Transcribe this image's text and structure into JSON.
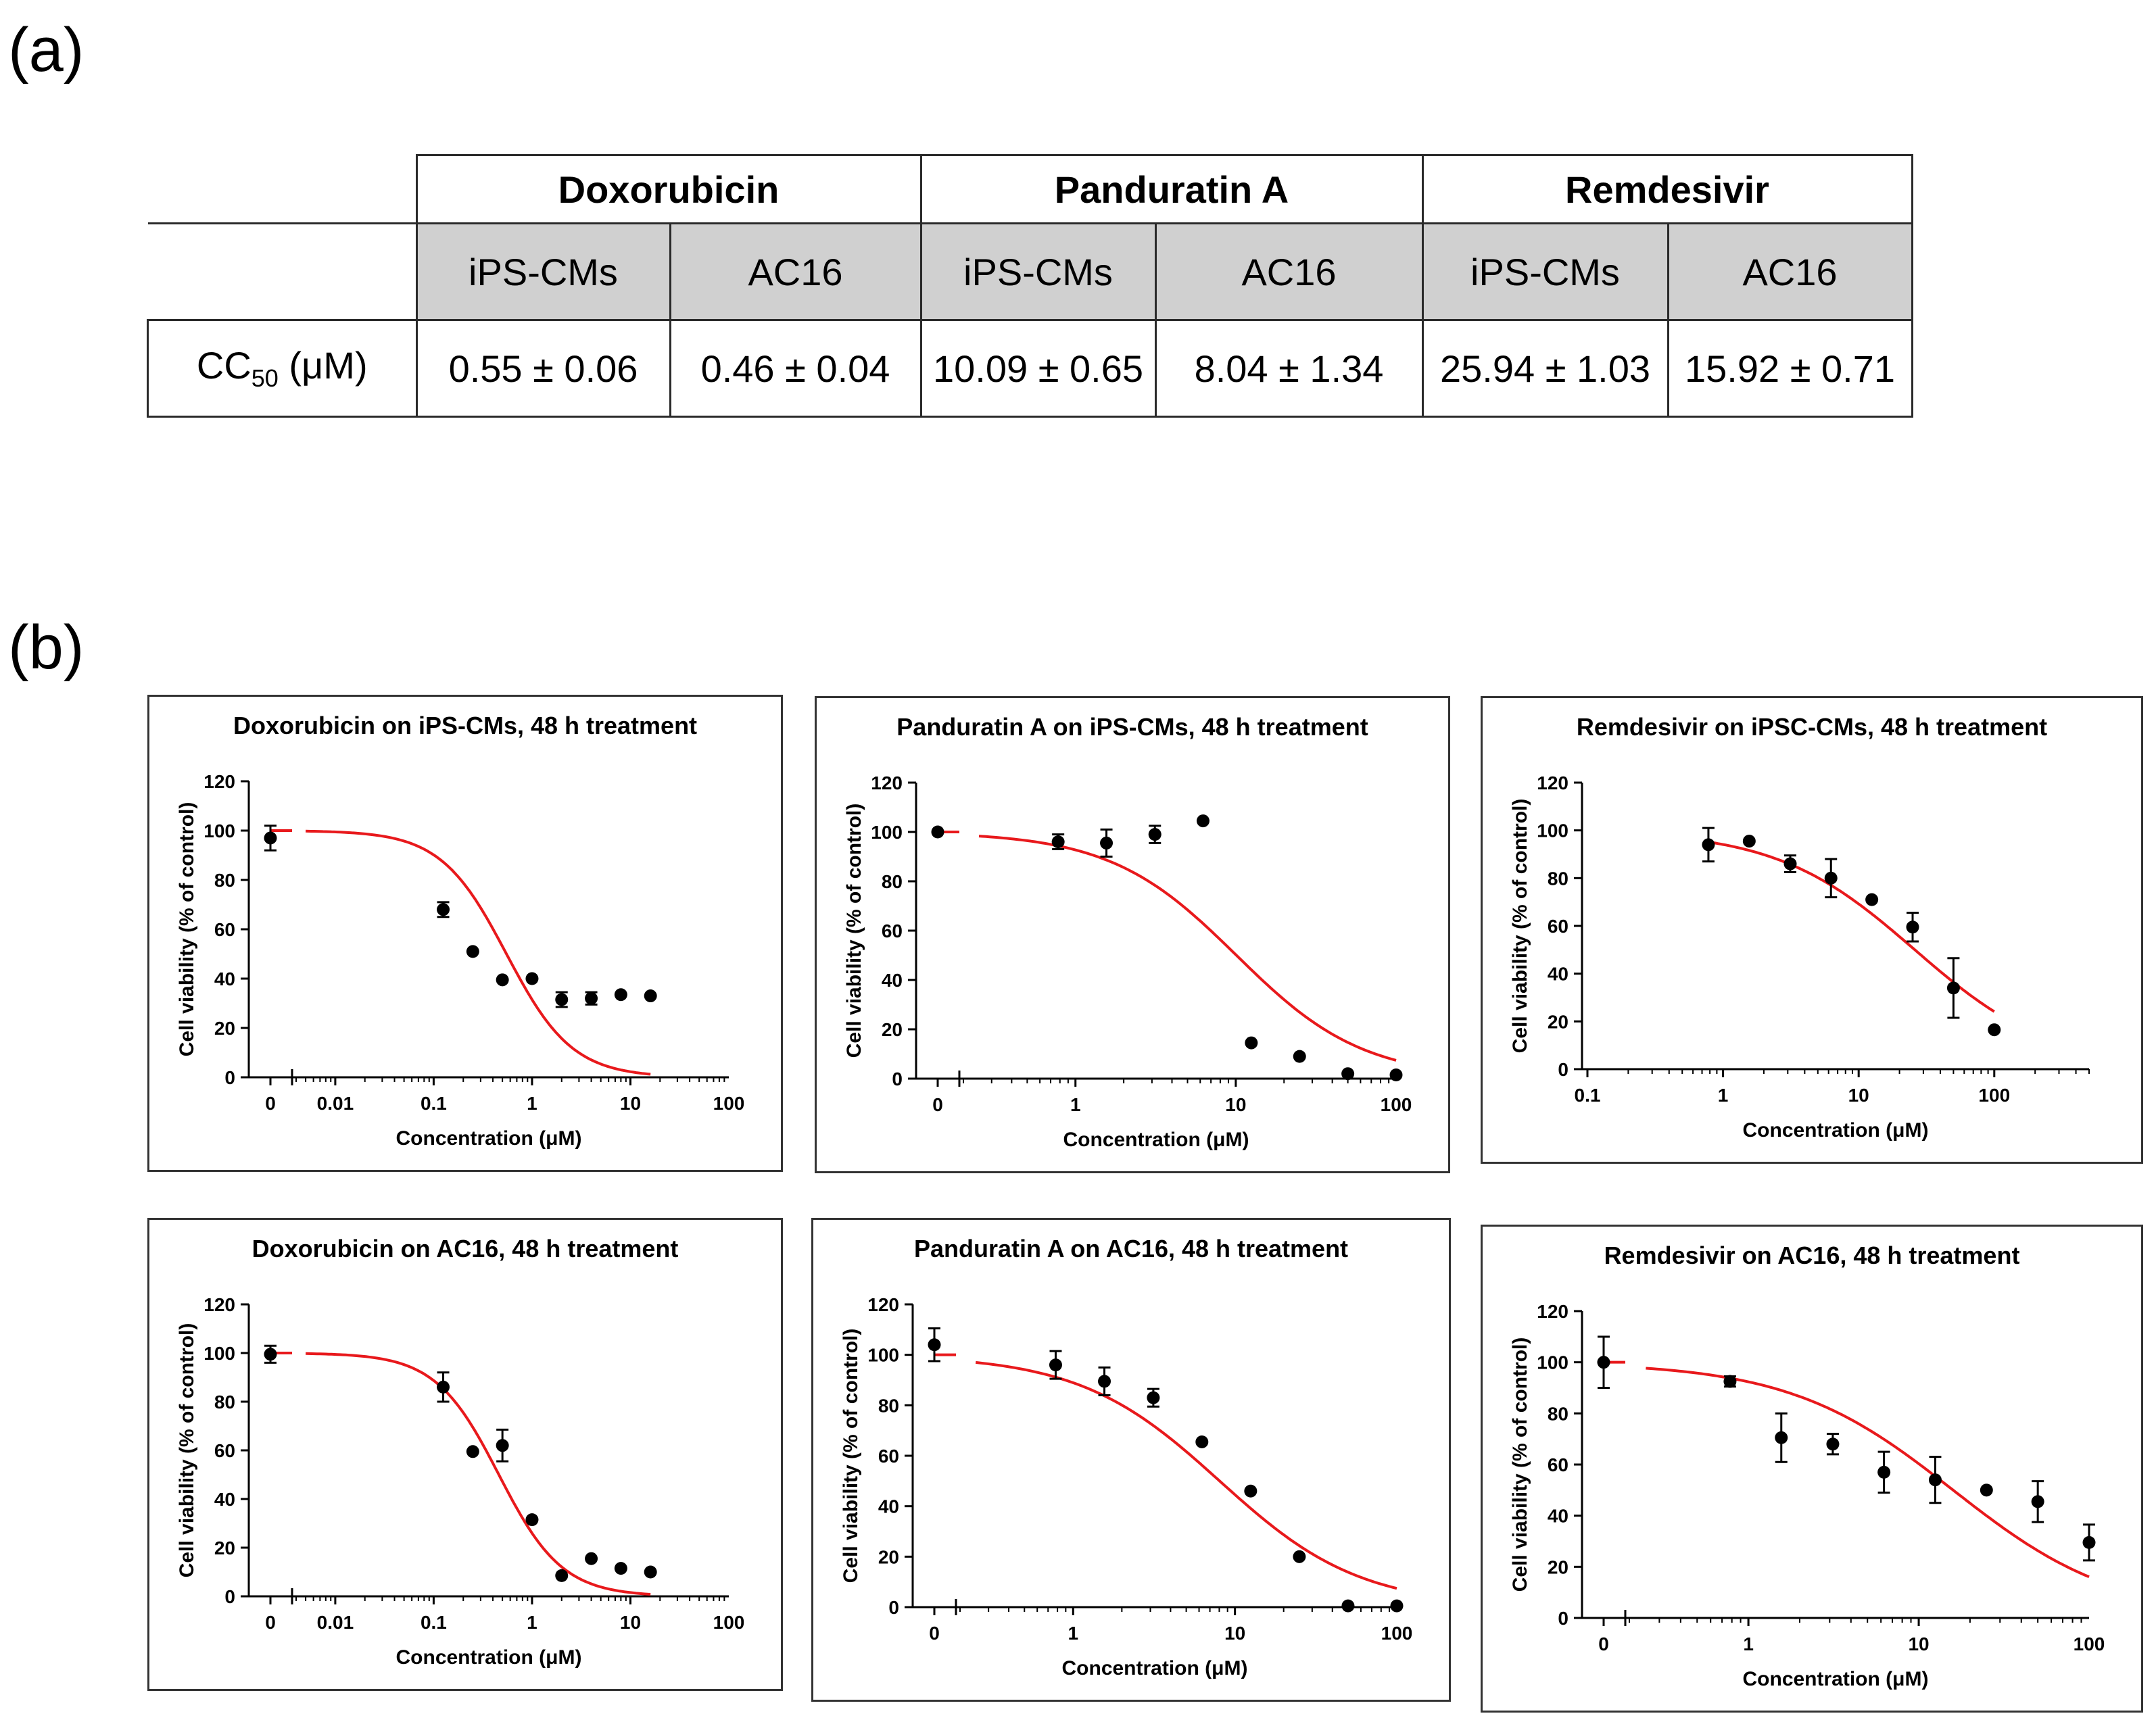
{
  "panel_labels": {
    "a": "(a)",
    "b": "(b)"
  },
  "table": {
    "drugs": [
      "Doxorubicin",
      "Panduratin A",
      "Remdesivir"
    ],
    "cell_lines": [
      "iPS-CMs",
      "AC16",
      "iPS-CMs",
      "AC16",
      "iPS-CMs",
      "AC16"
    ],
    "row_label_main": "CC",
    "row_label_sub": "50",
    "row_label_unit": " (μM)",
    "values": [
      "0.55 ± 0.06",
      "0.46 ± 0.04",
      "10.09 ± 0.65",
      "8.04 ± 1.34",
      "25.94 ± 1.03",
      "15.92 ± 0.71"
    ]
  },
  "colors": {
    "fit": "#e8191c",
    "points": "#000000",
    "header_fill": "#d0d0d0"
  },
  "chart_data": [
    {
      "type": "scatter",
      "title": "Doxorubicin on iPS-CMs, 48 h treatment",
      "xlabel": "Concentration (μM)",
      "ylabel": "Cell viability (% of control)",
      "xscale": "log",
      "xlim": [
        0.004,
        100
      ],
      "ylim": [
        0,
        120
      ],
      "xticks": [
        "0.01",
        "0.1",
        "1",
        "10",
        "100"
      ],
      "yticks": [
        0,
        20,
        40,
        60,
        80,
        100,
        120
      ],
      "zero_point": {
        "x": "0",
        "y": 97,
        "err": 5
      },
      "points": [
        {
          "x": 0.125,
          "y": 68,
          "err": 3
        },
        {
          "x": 0.25,
          "y": 51,
          "err": 0
        },
        {
          "x": 0.5,
          "y": 39.5,
          "err": 0
        },
        {
          "x": 1,
          "y": 40,
          "err": 0
        },
        {
          "x": 2,
          "y": 31.5,
          "err": 3
        },
        {
          "x": 4,
          "y": 32,
          "err": 2.5
        },
        {
          "x": 8,
          "y": 33.5,
          "err": 0
        },
        {
          "x": 16,
          "y": 33,
          "err": 0
        }
      ],
      "fit": {
        "ic50": 0.55,
        "hill": 1.3,
        "top": 100,
        "bottom": 0,
        "x_from": 0.005,
        "x_to": 16
      }
    },
    {
      "type": "scatter",
      "title": "Panduratin A on  iPS-CMs, 48 h treatment",
      "xlabel": "Concentration (μM)",
      "ylabel": "Cell viability (% of control)",
      "xscale": "log",
      "xlim": [
        0.2,
        100
      ],
      "ylim": [
        0,
        120
      ],
      "xticks": [
        "1",
        "10",
        "100"
      ],
      "yticks": [
        0,
        20,
        40,
        60,
        80,
        100,
        120
      ],
      "zero_point": {
        "x": "0",
        "y": 100,
        "err": 0
      },
      "points": [
        {
          "x": 0.78,
          "y": 96,
          "err": 3
        },
        {
          "x": 1.56,
          "y": 95.5,
          "err": 5.5
        },
        {
          "x": 3.13,
          "y": 99,
          "err": 3.5
        },
        {
          "x": 6.25,
          "y": 104.5,
          "err": 0
        },
        {
          "x": 12.5,
          "y": 14.5,
          "err": 0
        },
        {
          "x": 25,
          "y": 9,
          "err": 0
        },
        {
          "x": 50,
          "y": 2,
          "err": 0
        },
        {
          "x": 100,
          "y": 1.5,
          "err": 0
        }
      ],
      "fit": {
        "ic50": 10.09,
        "hill": 1.1,
        "top": 100,
        "bottom": 0,
        "x_from": 0.25,
        "x_to": 100
      }
    },
    {
      "type": "scatter",
      "title": "Remdesivir on iPSC-CMs, 48  h treatment",
      "xlabel": "Concentration (μM)",
      "ylabel": "Cell viability (% of control)",
      "xscale": "log",
      "xlim": [
        0.1,
        500
      ],
      "ylim": [
        0,
        120
      ],
      "xticks": [
        "0.1",
        "1",
        "10",
        "100"
      ],
      "yticks": [
        0,
        20,
        40,
        60,
        80,
        100,
        120
      ],
      "zero_point": null,
      "points": [
        {
          "x": 0.78,
          "y": 94,
          "err": 7
        },
        {
          "x": 1.56,
          "y": 95.5,
          "err": 0
        },
        {
          "x": 3.13,
          "y": 86,
          "err": 3.5
        },
        {
          "x": 6.25,
          "y": 80,
          "err": 8
        },
        {
          "x": 12.5,
          "y": 71,
          "err": 0
        },
        {
          "x": 25,
          "y": 59.5,
          "err": 6
        },
        {
          "x": 50,
          "y": 34,
          "err": 12.5
        },
        {
          "x": 100,
          "y": 16.5,
          "err": 0
        }
      ],
      "fit": {
        "ic50": 25.94,
        "hill": 0.85,
        "top": 100,
        "bottom": 0,
        "x_from": 0.78,
        "x_to": 100
      }
    },
    {
      "type": "scatter",
      "title": "Doxorubicin on AC16, 48 h treatment",
      "xlabel": "Concentration (μM)",
      "ylabel": "Cell viability (% of control)",
      "xscale": "log",
      "xlim": [
        0.004,
        100
      ],
      "ylim": [
        0,
        120
      ],
      "xticks": [
        "0.01",
        "0.1",
        "1",
        "10",
        "100"
      ],
      "yticks": [
        0,
        20,
        40,
        60,
        80,
        100,
        120
      ],
      "zero_point": {
        "x": "0",
        "y": 99.5,
        "err": 3.5
      },
      "points": [
        {
          "x": 0.125,
          "y": 86,
          "err": 6
        },
        {
          "x": 0.25,
          "y": 59.5,
          "err": 0
        },
        {
          "x": 0.5,
          "y": 62,
          "err": 6.5
        },
        {
          "x": 1,
          "y": 31.5,
          "err": 0
        },
        {
          "x": 2,
          "y": 8.5,
          "err": 0
        },
        {
          "x": 4,
          "y": 15.5,
          "err": 0
        },
        {
          "x": 8,
          "y": 11.5,
          "err": 0
        },
        {
          "x": 16,
          "y": 10,
          "err": 0
        }
      ],
      "fit": {
        "ic50": 0.46,
        "hill": 1.35,
        "top": 100,
        "bottom": 0,
        "x_from": 0.005,
        "x_to": 16
      }
    },
    {
      "type": "scatter",
      "title": "Panduratin A on  AC16, 48 h treatment",
      "xlabel": "Concentration (μM)",
      "ylabel": "Cell viability (% of control)",
      "xscale": "log",
      "xlim": [
        0.2,
        100
      ],
      "ylim": [
        0,
        120
      ],
      "xticks": [
        "1",
        "10",
        "100"
      ],
      "yticks": [
        0,
        20,
        40,
        60,
        80,
        100,
        120
      ],
      "zero_point": {
        "x": "0",
        "y": 104,
        "err": 6.5
      },
      "points": [
        {
          "x": 0.78,
          "y": 96,
          "err": 5.5
        },
        {
          "x": 1.56,
          "y": 89.5,
          "err": 5.5
        },
        {
          "x": 3.13,
          "y": 83,
          "err": 3.5
        },
        {
          "x": 6.25,
          "y": 65.5,
          "err": 0
        },
        {
          "x": 12.5,
          "y": 46,
          "err": 0
        },
        {
          "x": 25,
          "y": 20,
          "err": 0
        },
        {
          "x": 50,
          "y": 0.5,
          "err": 0
        },
        {
          "x": 100,
          "y": 0.5,
          "err": 0
        }
      ],
      "fit": {
        "ic50": 8.04,
        "hill": 1.0,
        "top": 100,
        "bottom": 0,
        "x_from": 0.25,
        "x_to": 100
      }
    },
    {
      "type": "scatter",
      "title": "Remdesivir on  AC16, 48 h treatment",
      "xlabel": "Concentration (μM)",
      "ylabel": "Cell viability (% of control)",
      "xscale": "log",
      "xlim": [
        0.2,
        100
      ],
      "ylim": [
        0,
        120
      ],
      "xticks": [
        "1",
        "10",
        "100"
      ],
      "yticks": [
        0,
        20,
        40,
        60,
        80,
        100,
        120
      ],
      "zero_point": {
        "x": "0",
        "y": 100,
        "err": 10
      },
      "points": [
        {
          "x": 0.78,
          "y": 92.5,
          "err": 2
        },
        {
          "x": 1.56,
          "y": 70.5,
          "err": 9.5
        },
        {
          "x": 3.13,
          "y": 68,
          "err": 4
        },
        {
          "x": 6.25,
          "y": 57,
          "err": 8
        },
        {
          "x": 12.5,
          "y": 54,
          "err": 9
        },
        {
          "x": 25,
          "y": 50,
          "err": 0
        },
        {
          "x": 50,
          "y": 45.5,
          "err": 8
        },
        {
          "x": 100,
          "y": 29.5,
          "err": 7
        }
      ],
      "fit": {
        "ic50": 15.92,
        "hill": 0.9,
        "top": 100,
        "bottom": 0,
        "x_from": 0.25,
        "x_to": 100
      }
    }
  ]
}
